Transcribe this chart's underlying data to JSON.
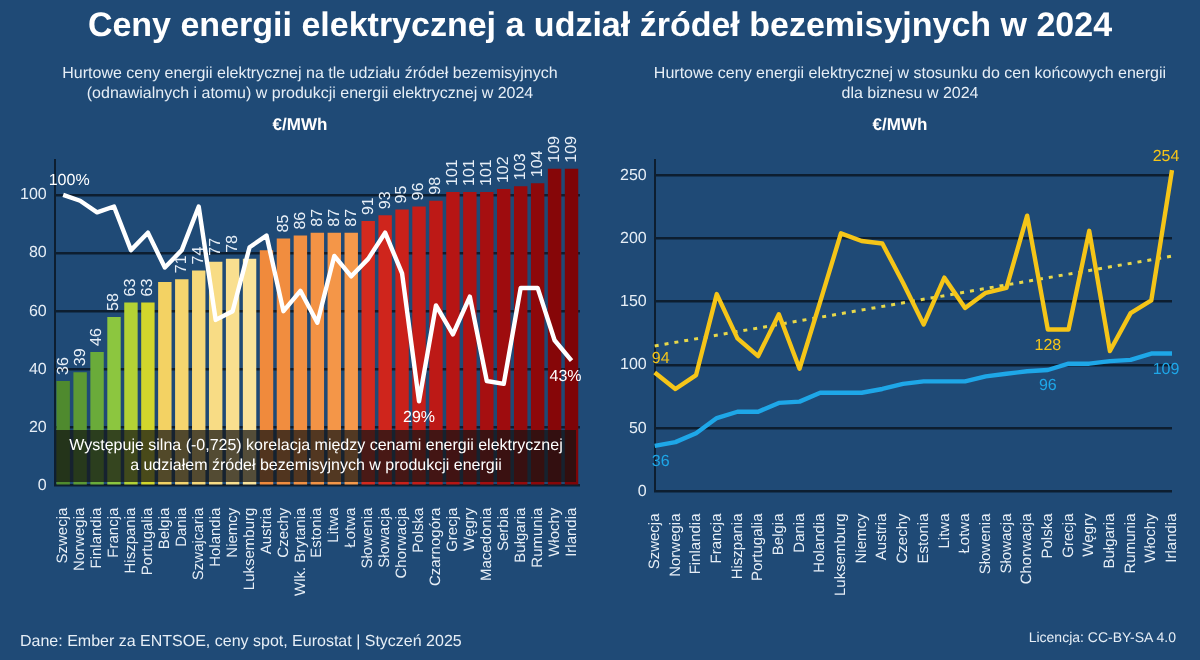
{
  "chart_data": [
    {
      "type": "bar",
      "title": "Ceny energii elektrycznej a udział źródeł bezemisyjnych w 2024",
      "subtitle": "Hurtowe ceny energii elektrycznej na tle udziału źródeł bezemisyjnych (odnawialnych i atomu) w produkcji energii elektrycznej w 2024",
      "ylabel": "€/MWh",
      "categories": [
        "Szwecja",
        "Norwegia",
        "Finlandia",
        "Francja",
        "Hiszpania",
        "Portugalia",
        "Belgia",
        "Dania",
        "Szwajcaria",
        "Holandia",
        "Niemcy",
        "Luksemburg",
        "Austria",
        "Czechy",
        "Wlk. Brytania",
        "Estonia",
        "Litwa",
        "Łotwa",
        "Słowenia",
        "Słowacja",
        "Chorwacja",
        "Polska",
        "Czarnogóra",
        "Grecja",
        "Węgry",
        "Macedonia",
        "Serbia",
        "Bułgaria",
        "Rumunia",
        "Włochy",
        "Irlandia"
      ],
      "series": [
        {
          "colors": [
            "#4f8a2e",
            "#5c9934",
            "#6aab3a",
            "#8cc63f",
            "#b3d235",
            "#d2d62c",
            "#f3d263",
            "#f5d56f",
            "#f6d87a",
            "#f8dc85",
            "#f9df8f",
            "#fae39a",
            "#f08a3c",
            "#f18d3f",
            "#f29042",
            "#f39345",
            "#f49648",
            "#f5994b",
            "#d42a1e",
            "#cf251c",
            "#ca211a",
            "#c41d18",
            "#bd1916",
            "#b61514",
            "#ae1212",
            "#a60f10",
            "#9e0c0e",
            "#960a0c",
            "#8e080a",
            "#860608",
            "#7e0407"
          ],
          "values": [
            36,
            39,
            46,
            58,
            63,
            63,
            70,
            71,
            74,
            77,
            78,
            78,
            81,
            85,
            86,
            87,
            87,
            87,
            91,
            93,
            95,
            96,
            98,
            101,
            101,
            101,
            102,
            103,
            104,
            109,
            109
          ],
          "value_labels": [
            "36",
            "39",
            "46",
            "58",
            "63",
            "63",
            null,
            "71",
            "74",
            "77",
            "78",
            null,
            null,
            "85",
            "86",
            "87",
            "87",
            "87",
            "91",
            "93",
            "95",
            "96",
            "98",
            "101",
            "101",
            "101",
            "102",
            "103",
            "104",
            "109",
            "109"
          ]
        },
        {
          "type": "line",
          "color": "#ffffff",
          "values": [
            100,
            98,
            94,
            96,
            81,
            87,
            75,
            81,
            96,
            57,
            60,
            82,
            86,
            60,
            67,
            56,
            79,
            72,
            78,
            87,
            73,
            29,
            62,
            52,
            65,
            36,
            35,
            68,
            68,
            50,
            43
          ],
          "value_labels": [
            "100%",
            null,
            null,
            null,
            null,
            null,
            null,
            null,
            null,
            null,
            null,
            null,
            null,
            null,
            null,
            null,
            null,
            null,
            null,
            null,
            null,
            "29%",
            null,
            null,
            null,
            null,
            null,
            null,
            null,
            null,
            "43%"
          ]
        }
      ],
      "ylim": [
        0,
        112
      ],
      "yticks": [
        0,
        20,
        40,
        60,
        80,
        100
      ],
      "grid": "y",
      "marker": "none",
      "annotations": [
        "Występuje silna (-0,725) korelacja między cenami energii elektrycznej a udziałem źródeł bezemisyjnych w produkcji energii"
      ]
    },
    {
      "type": "line",
      "title": "Hurtowe ceny energii elektrycznej w stosunku do cen końcowych energii dla biznesu w 2024",
      "ylabel": "€/MWh",
      "categories": [
        "Szwecja",
        "Norwegia",
        "Finlandia",
        "Francja",
        "Hiszpania",
        "Portugalia",
        "Belgia",
        "Dania",
        "Holandia",
        "Luksemburg",
        "Niemcy",
        "Austria",
        "Czechy",
        "Estonia",
        "Litwa",
        "Łotwa",
        "Słowenia",
        "Słowacja",
        "Chorwacja",
        "Polska",
        "Grecja",
        "Węgry",
        "Bułgaria",
        "Rumunia",
        "Włochy",
        "Irlandia"
      ],
      "series": [
        {
          "color": "#f5c518",
          "values": [
            94,
            81,
            92,
            156,
            121,
            107,
            140,
            97,
            150,
            204,
            198,
            196,
            165,
            132,
            169,
            145,
            157,
            161,
            218,
            128,
            128,
            206,
            111,
            141,
            151,
            254
          ],
          "value_labels": [
            "94",
            null,
            null,
            null,
            null,
            null,
            null,
            null,
            null,
            null,
            null,
            null,
            null,
            null,
            null,
            null,
            null,
            null,
            null,
            "128",
            null,
            null,
            null,
            null,
            null,
            "254"
          ]
        },
        {
          "color": "#1ea7e8",
          "values": [
            36,
            39,
            46,
            58,
            63,
            63,
            70,
            71,
            78,
            78,
            78,
            81,
            85,
            87,
            87,
            87,
            91,
            93,
            95,
            96,
            101,
            101,
            103,
            104,
            109,
            109
          ],
          "value_labels": [
            "36",
            null,
            null,
            null,
            null,
            null,
            null,
            null,
            null,
            null,
            null,
            null,
            null,
            null,
            null,
            null,
            null,
            null,
            null,
            "96",
            null,
            null,
            null,
            null,
            null,
            "109"
          ]
        },
        {
          "type": "line",
          "color": "#e8d84a",
          "line_style": "dotted",
          "x": [
            "Szwecja",
            "Irlandia"
          ],
          "values": [
            115,
            186
          ]
        }
      ],
      "ylim": [
        0,
        262
      ],
      "yticks": [
        0,
        50,
        100,
        150,
        200,
        250
      ],
      "grid": "y",
      "marker": "none",
      "annotations": [
        "Dane: Ember za ENTSOE, ceny spot, Eurostat   |   Styczeń 2025",
        "Licencja: CC-BY-SA 4.0"
      ]
    }
  ]
}
